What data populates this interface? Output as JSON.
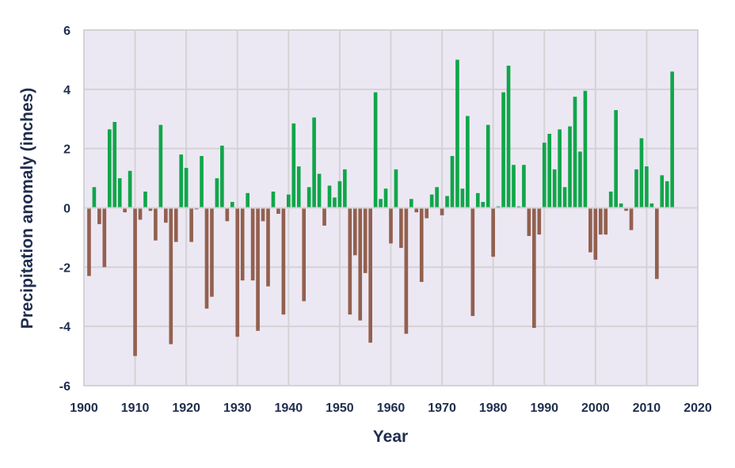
{
  "chart_data": {
    "type": "bar",
    "title": "",
    "xlabel": "Year",
    "ylabel": "Precipitation anomaly (inches)",
    "xlim": [
      1900,
      2020
    ],
    "ylim": [
      -6,
      6
    ],
    "x_ticks": [
      1900,
      1910,
      1920,
      1930,
      1940,
      1950,
      1960,
      1970,
      1980,
      1990,
      2000,
      2010,
      2020
    ],
    "y_ticks": [
      6,
      4,
      2,
      0,
      -2,
      -4,
      -6
    ],
    "grid": true,
    "colors": {
      "positive": "#10a64a",
      "negative": "#93604f",
      "plot_background": "#ece8f3",
      "grid": "#d3d3d6",
      "text": "#1f2d4d"
    },
    "years": [
      1901,
      1902,
      1903,
      1904,
      1905,
      1906,
      1907,
      1908,
      1909,
      1910,
      1911,
      1912,
      1913,
      1914,
      1915,
      1916,
      1917,
      1918,
      1919,
      1920,
      1921,
      1922,
      1923,
      1924,
      1925,
      1926,
      1927,
      1928,
      1929,
      1930,
      1931,
      1932,
      1933,
      1934,
      1935,
      1936,
      1937,
      1938,
      1939,
      1940,
      1941,
      1942,
      1943,
      1944,
      1945,
      1946,
      1947,
      1948,
      1949,
      1950,
      1951,
      1952,
      1953,
      1954,
      1955,
      1956,
      1957,
      1958,
      1959,
      1960,
      1961,
      1962,
      1963,
      1964,
      1965,
      1966,
      1967,
      1968,
      1969,
      1970,
      1971,
      1972,
      1973,
      1974,
      1975,
      1976,
      1977,
      1978,
      1979,
      1980,
      1981,
      1982,
      1983,
      1984,
      1985,
      1986,
      1987,
      1988,
      1989,
      1990,
      1991,
      1992,
      1993,
      1994,
      1995,
      1996,
      1997,
      1998,
      1999,
      2000,
      2001,
      2002,
      2003,
      2004,
      2005,
      2006,
      2007,
      2008,
      2009,
      2010,
      2011,
      2012,
      2013,
      2014,
      2015
    ],
    "values": [
      -2.3,
      0.7,
      -0.55,
      -2.0,
      2.65,
      2.9,
      1.0,
      -0.15,
      1.25,
      -5.0,
      -0.4,
      0.55,
      -0.1,
      -1.1,
      2.8,
      -0.5,
      -4.6,
      -1.15,
      1.8,
      1.35,
      -1.15,
      -0.05,
      1.75,
      -3.4,
      -3.0,
      1.0,
      2.1,
      -0.45,
      0.2,
      -4.35,
      -2.45,
      0.5,
      -2.45,
      -4.15,
      -0.45,
      -2.65,
      0.55,
      -0.2,
      -3.6,
      0.45,
      2.85,
      1.4,
      -3.15,
      0.7,
      3.05,
      1.15,
      -0.6,
      0.75,
      0.35,
      0.9,
      1.3,
      -3.6,
      -1.6,
      -3.8,
      -2.2,
      -4.55,
      3.9,
      0.3,
      0.65,
      -1.2,
      1.3,
      -1.35,
      -4.25,
      0.3,
      -0.15,
      -2.5,
      -0.35,
      0.45,
      0.7,
      -0.25,
      0.4,
      1.75,
      5.0,
      0.65,
      3.1,
      -3.65,
      0.5,
      0.2,
      2.8,
      -1.65,
      0.05,
      3.9,
      4.8,
      1.45,
      0.05,
      1.45,
      -0.95,
      -4.05,
      -0.9,
      2.2,
      2.5,
      1.3,
      2.65,
      0.7,
      2.75,
      3.75,
      1.9,
      3.95,
      -1.5,
      -1.75,
      -0.9,
      -0.9,
      0.55,
      3.3,
      0.15,
      -0.1,
      -0.75,
      1.3,
      2.35,
      1.4,
      0.15,
      -2.4,
      1.1,
      0.9,
      4.6
    ]
  }
}
